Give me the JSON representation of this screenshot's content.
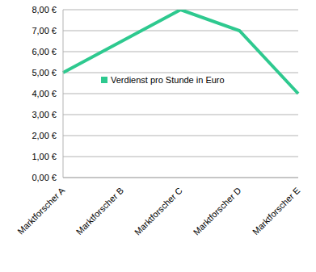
{
  "chart_data": {
    "type": "line",
    "categories": [
      "Marktforscher A",
      "Marktforscher B",
      "Marktforscher C",
      "Marktforscher D",
      "Marktforscher E"
    ],
    "series": [
      {
        "name": "Verdienst pro Stunde in Euro",
        "color": "#2ec98f",
        "values": [
          5.0,
          6.5,
          8.0,
          7.0,
          4.0
        ]
      }
    ],
    "ylim": [
      0,
      8
    ],
    "yticks": [
      {
        "value": 0,
        "label": "0,00 €"
      },
      {
        "value": 1,
        "label": "1,00 €"
      },
      {
        "value": 2,
        "label": "2,00 €"
      },
      {
        "value": 3,
        "label": "3,00 €"
      },
      {
        "value": 4,
        "label": "4,00 €"
      },
      {
        "value": 5,
        "label": "5,00 €"
      },
      {
        "value": 6,
        "label": "6,00 €"
      },
      {
        "value": 7,
        "label": "7,00 €"
      },
      {
        "value": 8,
        "label": "8,00 €"
      }
    ],
    "grid": true,
    "legend": "center"
  }
}
